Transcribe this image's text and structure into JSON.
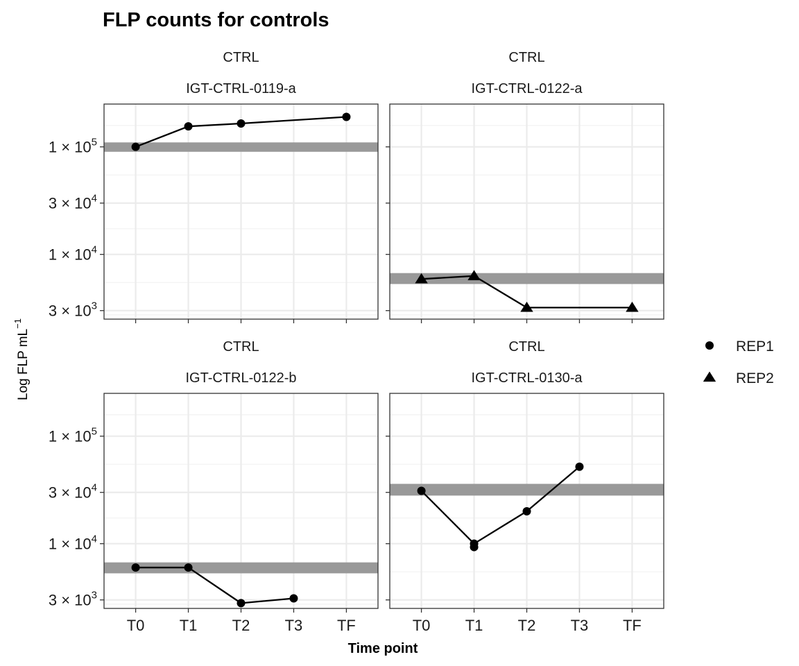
{
  "chart_data": {
    "type": "line",
    "title": "FLP counts for controls",
    "xlabel": "Time point",
    "ylabel": "Log FLP  mL",
    "ylabel_superscript": "−1",
    "y_scale": "log10",
    "ylim": [
      2500,
      250000
    ],
    "y_ticks": [
      {
        "value": 3000,
        "mantissa": "3",
        "exponent": "3"
      },
      {
        "value": 10000,
        "mantissa": "1",
        "exponent": "4"
      },
      {
        "value": 30000,
        "mantissa": "3",
        "exponent": "4"
      },
      {
        "value": 100000,
        "mantissa": "1",
        "exponent": "5"
      }
    ],
    "times_symbol": "×",
    "categories": [
      "T0",
      "T1",
      "T2",
      "T3",
      "TF"
    ],
    "grid": true,
    "legend": {
      "position": "right",
      "entries": [
        {
          "label": "REP1",
          "shape": "circle"
        },
        {
          "label": "REP2",
          "shape": "triangle"
        }
      ]
    },
    "colors": {
      "line": "#000000",
      "band": "#999999",
      "grid": "#ebebeb",
      "panel_border": "#333333"
    },
    "panels": [
      {
        "strip_top": "CTRL",
        "strip_bottom": "IGT-CTRL-0119-a",
        "band": [
          90000,
          110000
        ],
        "series": [
          {
            "name": "REP1",
            "shape": "circle",
            "x": [
              "T0",
              "T1",
              "T2",
              "TF"
            ],
            "values": [
              100000,
              155000,
              165000,
              190000
            ]
          }
        ]
      },
      {
        "strip_top": "CTRL",
        "strip_bottom": "IGT-CTRL-0122-a",
        "band": [
          5300,
          6700
        ],
        "series": [
          {
            "name": "REP2",
            "shape": "triangle",
            "x": [
              "T0",
              "T1",
              "T2",
              "TF"
            ],
            "values": [
              5900,
              6300,
              3200,
              3200
            ]
          }
        ]
      },
      {
        "strip_top": "CTRL",
        "strip_bottom": "IGT-CTRL-0122-b",
        "band": [
          5300,
          6700
        ],
        "series": [
          {
            "name": "REP1",
            "shape": "circle",
            "x": [
              "T0",
              "T1",
              "T2",
              "T3"
            ],
            "values": [
              6000,
              6000,
              2800,
              3100
            ]
          }
        ]
      },
      {
        "strip_top": "CTRL",
        "strip_bottom": "IGT-CTRL-0130-a",
        "band": [
          28000,
          36000
        ],
        "series": [
          {
            "name": "REP1",
            "shape": "circle",
            "x": [
              "T0",
              "T1",
              "T2",
              "T3"
            ],
            "values": [
              31000,
              10000,
              20000,
              52000
            ]
          },
          {
            "name": "REP1",
            "shape": "circle",
            "x": [
              "T1"
            ],
            "values": [
              9300
            ]
          }
        ]
      }
    ]
  }
}
